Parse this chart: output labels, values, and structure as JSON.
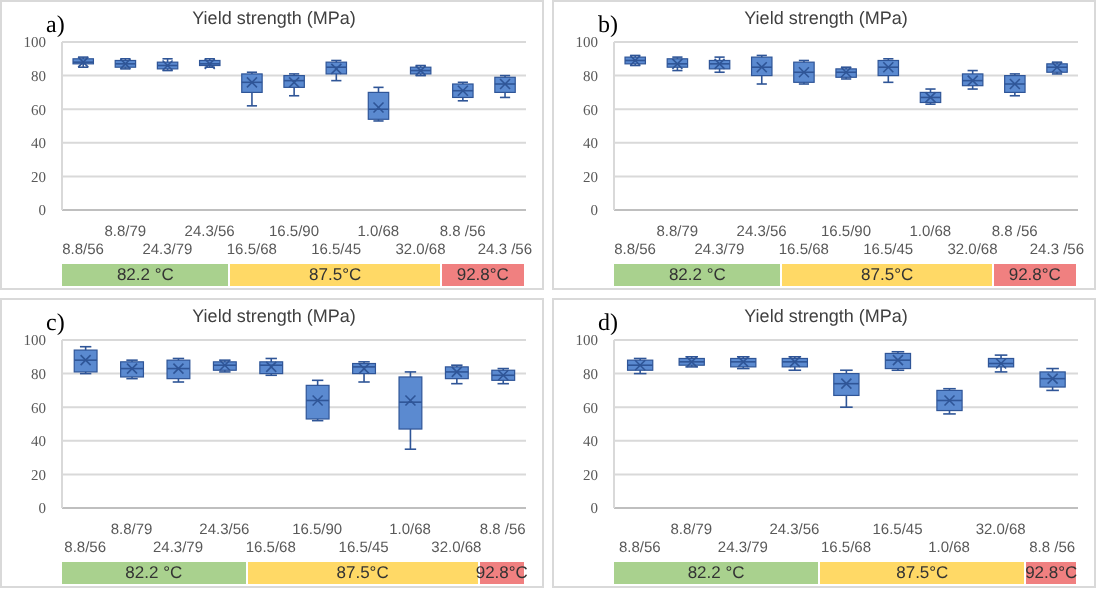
{
  "chart_data": [
    {
      "type": "box",
      "title": "Yield strength (MPa)",
      "annotations": [
        "a)",
        "82.2 °C",
        "87.5°C",
        "92.8°C"
      ],
      "categories": [
        "8.8/56",
        "8.8/79",
        "24.3/79",
        "24.3/56",
        "16.5/68",
        "16.5/90",
        "16.5/45",
        "1.0/68",
        "32.0/68",
        "8.8 /56",
        "24.3 /56"
      ],
      "color": "#5b8ad0",
      "ylim": [
        0,
        100
      ],
      "yticks": [
        0,
        20,
        40,
        60,
        80,
        100
      ],
      "grid": "y",
      "boxes": [
        {
          "low": 85,
          "q1": 87,
          "median": 88,
          "q3": 90,
          "high": 91,
          "mean": 88
        },
        {
          "low": 84,
          "q1": 85,
          "median": 87,
          "q3": 89,
          "high": 90,
          "mean": 87
        },
        {
          "low": 83,
          "q1": 84,
          "median": 86,
          "q3": 88,
          "high": 90,
          "mean": 86
        },
        {
          "low": 85,
          "q1": 86,
          "median": 87,
          "q3": 89,
          "high": 90,
          "mean": 87
        },
        {
          "low": 62,
          "q1": 70,
          "median": 76,
          "q3": 81,
          "high": 82,
          "mean": 76
        },
        {
          "low": 68,
          "q1": 73,
          "median": 77,
          "q3": 80,
          "high": 81,
          "mean": 76
        },
        {
          "low": 77,
          "q1": 81,
          "median": 85,
          "q3": 88,
          "high": 89,
          "mean": 84
        },
        {
          "low": 53,
          "q1": 54,
          "median": 60,
          "q3": 70,
          "high": 73,
          "mean": 61
        },
        {
          "low": 80,
          "q1": 81,
          "median": 83,
          "q3": 85,
          "high": 86,
          "mean": 83
        },
        {
          "low": 65,
          "q1": 67,
          "median": 71,
          "q3": 75,
          "high": 76,
          "mean": 71
        },
        {
          "low": 67,
          "q1": 70,
          "median": 75,
          "q3": 79,
          "high": 80,
          "mean": 75
        }
      ]
    },
    {
      "type": "box",
      "title": "Yield strength (MPa)",
      "annotations": [
        "b)",
        "82.2 °C",
        "87.5°C",
        "92.8°C"
      ],
      "categories": [
        "8.8/56",
        "8.8/79",
        "24.3/79",
        "24.3/56",
        "16.5/68",
        "16.5/90",
        "16.5/45",
        "1.0/68",
        "32.0/68",
        "8.8 /56",
        "24.3 /56"
      ],
      "color": "#5b8ad0",
      "ylim": [
        0,
        100
      ],
      "yticks": [
        0,
        20,
        40,
        60,
        80,
        100
      ],
      "grid": "y",
      "boxes": [
        {
          "low": 86,
          "q1": 87,
          "median": 89,
          "q3": 91,
          "high": 92,
          "mean": 89
        },
        {
          "low": 83,
          "q1": 85,
          "median": 87,
          "q3": 90,
          "high": 91,
          "mean": 87
        },
        {
          "low": 82,
          "q1": 84,
          "median": 87,
          "q3": 89,
          "high": 91,
          "mean": 87
        },
        {
          "low": 75,
          "q1": 80,
          "median": 85,
          "q3": 91,
          "high": 92,
          "mean": 85
        },
        {
          "low": 75,
          "q1": 76,
          "median": 82,
          "q3": 88,
          "high": 89,
          "mean": 82
        },
        {
          "low": 78,
          "q1": 79,
          "median": 82,
          "q3": 84,
          "high": 85,
          "mean": 82
        },
        {
          "low": 76,
          "q1": 80,
          "median": 85,
          "q3": 89,
          "high": 90,
          "mean": 85
        },
        {
          "low": 63,
          "q1": 64,
          "median": 67,
          "q3": 70,
          "high": 72,
          "mean": 67
        },
        {
          "low": 72,
          "q1": 74,
          "median": 77,
          "q3": 81,
          "high": 83,
          "mean": 77
        },
        {
          "low": 68,
          "q1": 70,
          "median": 75,
          "q3": 80,
          "high": 81,
          "mean": 75
        },
        {
          "low": 81,
          "q1": 82,
          "median": 85,
          "q3": 87,
          "high": 88,
          "mean": 85
        }
      ]
    },
    {
      "type": "box",
      "title": "Yield strength (MPa)",
      "annotations": [
        "c)",
        "82.2 °C",
        "87.5°C",
        "92.8°C"
      ],
      "categories": [
        "8.8/56",
        "8.8/79",
        "24.3/79",
        "24.3/56",
        "16.5/68",
        "16.5/90",
        "16.5/45",
        "1.0/68",
        "32.0/68",
        "8.8 /56"
      ],
      "color": "#5b8ad0",
      "ylim": [
        0,
        100
      ],
      "yticks": [
        0,
        20,
        40,
        60,
        80,
        100
      ],
      "grid": "y",
      "boxes": [
        {
          "low": 80,
          "q1": 81,
          "median": 88,
          "q3": 94,
          "high": 96,
          "mean": 88
        },
        {
          "low": 77,
          "q1": 78,
          "median": 83,
          "q3": 87,
          "high": 88,
          "mean": 83
        },
        {
          "low": 75,
          "q1": 77,
          "median": 83,
          "q3": 88,
          "high": 89,
          "mean": 83
        },
        {
          "low": 81,
          "q1": 82,
          "median": 85,
          "q3": 87,
          "high": 88,
          "mean": 85
        },
        {
          "low": 79,
          "q1": 80,
          "median": 85,
          "q3": 87,
          "high": 89,
          "mean": 84
        },
        {
          "low": 52,
          "q1": 53,
          "median": 64,
          "q3": 73,
          "high": 76,
          "mean": 64
        },
        {
          "low": 75,
          "q1": 80,
          "median": 84,
          "q3": 86,
          "high": 87,
          "mean": 83
        },
        {
          "low": 35,
          "q1": 47,
          "median": 63,
          "q3": 78,
          "high": 81,
          "mean": 64
        },
        {
          "low": 74,
          "q1": 77,
          "median": 81,
          "q3": 84,
          "high": 85,
          "mean": 81
        },
        {
          "low": 74,
          "q1": 76,
          "median": 79,
          "q3": 82,
          "high": 83,
          "mean": 79
        }
      ]
    },
    {
      "type": "box",
      "title": "Yield strength (MPa)",
      "annotations": [
        "d)",
        "82.2 °C",
        "87.5°C",
        "92.8°C"
      ],
      "categories": [
        "8.8/56",
        "8.8/79",
        "24.3/79",
        "24.3/56",
        "16.5/68",
        "16.5/45",
        "1.0/68",
        "32.0/68",
        "8.8 /56"
      ],
      "color": "#5b8ad0",
      "ylim": [
        0,
        100
      ],
      "yticks": [
        0,
        20,
        40,
        60,
        80,
        100
      ],
      "grid": "y",
      "boxes": [
        {
          "low": 80,
          "q1": 82,
          "median": 85,
          "q3": 88,
          "high": 89,
          "mean": 85
        },
        {
          "low": 84,
          "q1": 85,
          "median": 87,
          "q3": 89,
          "high": 90,
          "mean": 87
        },
        {
          "low": 83,
          "q1": 84,
          "median": 87,
          "q3": 89,
          "high": 90,
          "mean": 87
        },
        {
          "low": 82,
          "q1": 84,
          "median": 87,
          "q3": 89,
          "high": 90,
          "mean": 87
        },
        {
          "low": 60,
          "q1": 67,
          "median": 74,
          "q3": 80,
          "high": 82,
          "mean": 74
        },
        {
          "low": 82,
          "q1": 83,
          "median": 88,
          "q3": 92,
          "high": 93,
          "mean": 88
        },
        {
          "low": 56,
          "q1": 58,
          "median": 64,
          "q3": 70,
          "high": 71,
          "mean": 64
        },
        {
          "low": 81,
          "q1": 84,
          "median": 86,
          "q3": 89,
          "high": 91,
          "mean": 86
        },
        {
          "low": 70,
          "q1": 72,
          "median": 77,
          "q3": 81,
          "high": 83,
          "mean": 77
        }
      ]
    }
  ]
}
